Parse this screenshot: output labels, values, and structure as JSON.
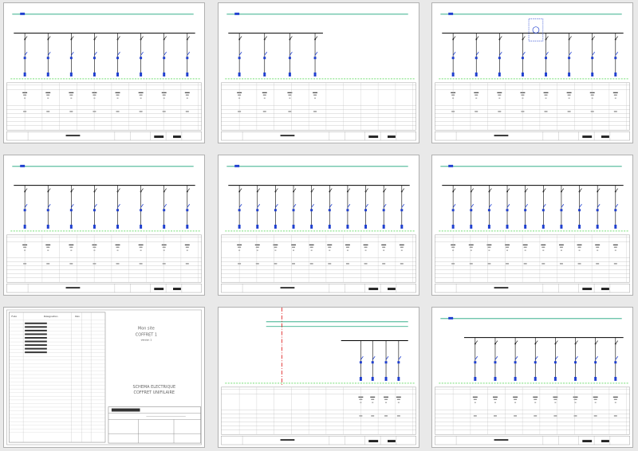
{
  "sheets": [
    {
      "id": "s1",
      "feeders": 8,
      "type": "distribution"
    },
    {
      "id": "s2",
      "feeders": 4,
      "type": "distribution"
    },
    {
      "id": "s3",
      "feeders": 8,
      "type": "distribution-meter"
    },
    {
      "id": "s4",
      "feeders": 8,
      "type": "distribution"
    },
    {
      "id": "s5",
      "feeders": 10,
      "type": "distribution"
    },
    {
      "id": "s6",
      "feeders": 10,
      "type": "distribution"
    },
    {
      "id": "s7",
      "type": "cover"
    },
    {
      "id": "s8",
      "feeders": 4,
      "type": "incomer"
    },
    {
      "id": "s9",
      "feeders": 8,
      "type": "distribution"
    }
  ],
  "cover": {
    "title_line1": "Mon site",
    "title_line2": "COFFRET 1",
    "title_line3": "version 1",
    "subtitle_line1": "SCHEMA ELECTRIQUE",
    "subtitle_line2": "COFFRET UNIFILAIRE",
    "col_folio": "Folio",
    "col_designation": "Désignation",
    "col_rev": "Rév"
  },
  "colors": {
    "bus_green": "#1aa37a",
    "bus_black": "#000000",
    "device_blue": "#1f3fd0",
    "dashed_green": "#22cc22",
    "red_axis": "#dd1111"
  }
}
